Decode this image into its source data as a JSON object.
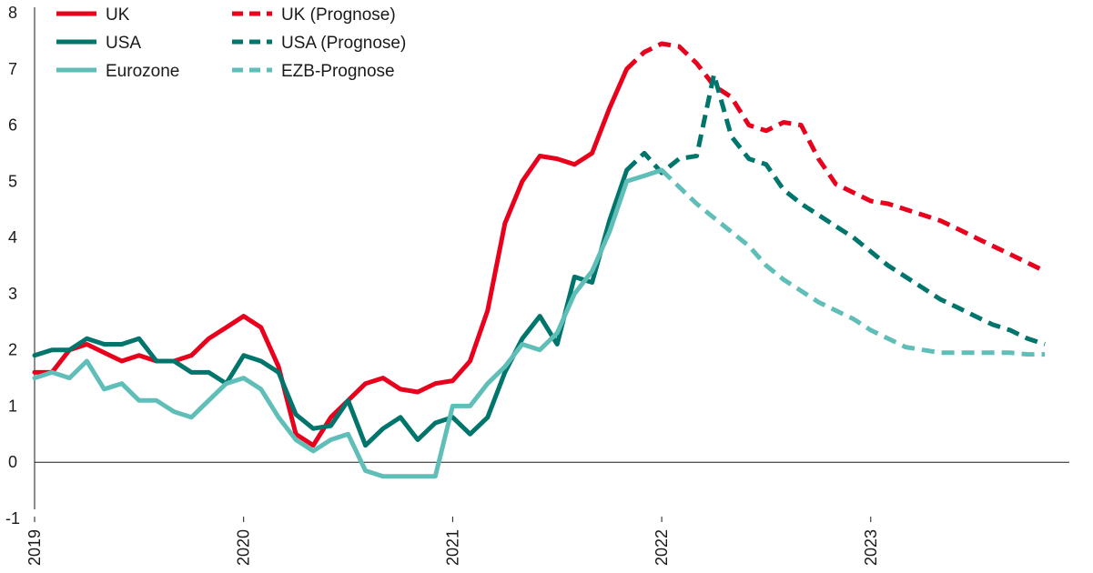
{
  "chart_data": {
    "type": "line",
    "title": "",
    "xlabel": "",
    "ylabel": "",
    "ylim": [
      -1,
      8
    ],
    "yticks": [
      -1,
      0,
      1,
      2,
      3,
      4,
      5,
      6,
      7,
      8
    ],
    "xlim": [
      2019.0,
      2023.95
    ],
    "xticks": [
      {
        "value": 2019,
        "label": "2019"
      },
      {
        "value": 2020,
        "label": "2020"
      },
      {
        "value": 2021,
        "label": "2021"
      },
      {
        "value": 2022,
        "label": "2022"
      },
      {
        "value": 2023,
        "label": "2023"
      }
    ],
    "grid": false,
    "legend": "top-left",
    "series": [
      {
        "name": "UK",
        "color": "#e8001c",
        "dashed": false,
        "points": [
          [
            2019.0,
            1.6
          ],
          [
            2019.083,
            1.6
          ],
          [
            2019.167,
            2.0
          ],
          [
            2019.25,
            2.1
          ],
          [
            2019.333,
            1.95
          ],
          [
            2019.417,
            1.8
          ],
          [
            2019.5,
            1.9
          ],
          [
            2019.583,
            1.8
          ],
          [
            2019.667,
            1.8
          ],
          [
            2019.75,
            1.9
          ],
          [
            2019.833,
            2.2
          ],
          [
            2019.917,
            2.4
          ],
          [
            2020.0,
            2.6
          ],
          [
            2020.083,
            2.4
          ],
          [
            2020.167,
            1.7
          ],
          [
            2020.25,
            0.5
          ],
          [
            2020.333,
            0.3
          ],
          [
            2020.417,
            0.8
          ],
          [
            2020.5,
            1.1
          ],
          [
            2020.583,
            1.4
          ],
          [
            2020.667,
            1.5
          ],
          [
            2020.75,
            1.3
          ],
          [
            2020.833,
            1.25
          ],
          [
            2020.917,
            1.4
          ],
          [
            2021.0,
            1.45
          ],
          [
            2021.083,
            1.8
          ],
          [
            2021.167,
            2.7
          ],
          [
            2021.25,
            4.25
          ],
          [
            2021.333,
            5.0
          ],
          [
            2021.417,
            5.45
          ],
          [
            2021.5,
            5.4
          ],
          [
            2021.583,
            5.3
          ],
          [
            2021.667,
            5.5
          ],
          [
            2021.75,
            6.3
          ],
          [
            2021.833,
            7.0
          ]
        ]
      },
      {
        "name": "UK (Prognose)",
        "color": "#e8001c",
        "dashed": true,
        "points": [
          [
            2021.833,
            7.0
          ],
          [
            2021.917,
            7.3
          ],
          [
            2022.0,
            7.45
          ],
          [
            2022.083,
            7.4
          ],
          [
            2022.167,
            7.1
          ],
          [
            2022.25,
            6.7
          ],
          [
            2022.333,
            6.5
          ],
          [
            2022.417,
            6.0
          ],
          [
            2022.5,
            5.9
          ],
          [
            2022.583,
            6.05
          ],
          [
            2022.667,
            6.0
          ],
          [
            2022.75,
            5.4
          ],
          [
            2022.833,
            4.95
          ],
          [
            2022.917,
            4.8
          ],
          [
            2023.0,
            4.65
          ],
          [
            2023.083,
            4.6
          ],
          [
            2023.167,
            4.5
          ],
          [
            2023.25,
            4.4
          ],
          [
            2023.333,
            4.3
          ],
          [
            2023.417,
            4.15
          ],
          [
            2023.5,
            4.0
          ],
          [
            2023.583,
            3.85
          ],
          [
            2023.667,
            3.7
          ],
          [
            2023.75,
            3.55
          ],
          [
            2023.833,
            3.4
          ]
        ]
      },
      {
        "name": "USA",
        "color": "#00756b",
        "dashed": false,
        "points": [
          [
            2019.0,
            1.9
          ],
          [
            2019.083,
            2.0
          ],
          [
            2019.167,
            2.0
          ],
          [
            2019.25,
            2.2
          ],
          [
            2019.333,
            2.1
          ],
          [
            2019.417,
            2.1
          ],
          [
            2019.5,
            2.2
          ],
          [
            2019.583,
            1.8
          ],
          [
            2019.667,
            1.8
          ],
          [
            2019.75,
            1.6
          ],
          [
            2019.833,
            1.6
          ],
          [
            2019.917,
            1.4
          ],
          [
            2020.0,
            1.9
          ],
          [
            2020.083,
            1.8
          ],
          [
            2020.167,
            1.6
          ],
          [
            2020.25,
            0.85
          ],
          [
            2020.333,
            0.6
          ],
          [
            2020.417,
            0.65
          ],
          [
            2020.5,
            1.1
          ],
          [
            2020.583,
            0.3
          ],
          [
            2020.667,
            0.6
          ],
          [
            2020.75,
            0.8
          ],
          [
            2020.833,
            0.4
          ],
          [
            2020.917,
            0.7
          ],
          [
            2021.0,
            0.8
          ],
          [
            2021.083,
            0.5
          ],
          [
            2021.167,
            0.8
          ],
          [
            2021.25,
            1.6
          ],
          [
            2021.333,
            2.2
          ],
          [
            2021.417,
            2.6
          ],
          [
            2021.5,
            2.1
          ],
          [
            2021.583,
            3.3
          ],
          [
            2021.667,
            3.2
          ],
          [
            2021.75,
            4.3
          ],
          [
            2021.833,
            5.2
          ]
        ]
      },
      {
        "name": "USA (Prognose)",
        "color": "#00756b",
        "dashed": true,
        "points": [
          [
            2021.833,
            5.2
          ],
          [
            2021.917,
            5.5
          ],
          [
            2022.0,
            5.15
          ],
          [
            2022.083,
            5.4
          ],
          [
            2022.167,
            5.45
          ],
          [
            2022.25,
            6.9
          ],
          [
            2022.333,
            5.8
          ],
          [
            2022.417,
            5.4
          ],
          [
            2022.5,
            5.3
          ],
          [
            2022.583,
            4.85
          ],
          [
            2022.667,
            4.6
          ],
          [
            2022.75,
            4.4
          ],
          [
            2022.833,
            4.2
          ],
          [
            2022.917,
            4.0
          ],
          [
            2023.0,
            3.75
          ],
          [
            2023.083,
            3.5
          ],
          [
            2023.167,
            3.3
          ],
          [
            2023.25,
            3.1
          ],
          [
            2023.333,
            2.9
          ],
          [
            2023.417,
            2.75
          ],
          [
            2023.5,
            2.6
          ],
          [
            2023.583,
            2.45
          ],
          [
            2023.667,
            2.35
          ],
          [
            2023.75,
            2.2
          ],
          [
            2023.833,
            2.1
          ]
        ]
      },
      {
        "name": "Eurozone",
        "color": "#5fbfb8",
        "dashed": false,
        "points": [
          [
            2019.0,
            1.5
          ],
          [
            2019.083,
            1.6
          ],
          [
            2019.167,
            1.5
          ],
          [
            2019.25,
            1.8
          ],
          [
            2019.333,
            1.3
          ],
          [
            2019.417,
            1.4
          ],
          [
            2019.5,
            1.1
          ],
          [
            2019.583,
            1.1
          ],
          [
            2019.667,
            0.9
          ],
          [
            2019.75,
            0.8
          ],
          [
            2019.833,
            1.1
          ],
          [
            2019.917,
            1.4
          ],
          [
            2020.0,
            1.5
          ],
          [
            2020.083,
            1.3
          ],
          [
            2020.167,
            0.8
          ],
          [
            2020.25,
            0.4
          ],
          [
            2020.333,
            0.2
          ],
          [
            2020.417,
            0.4
          ],
          [
            2020.5,
            0.5
          ],
          [
            2020.583,
            -0.15
          ],
          [
            2020.667,
            -0.25
          ],
          [
            2020.75,
            -0.25
          ],
          [
            2020.833,
            -0.25
          ],
          [
            2020.917,
            -0.25
          ],
          [
            2021.0,
            1.0
          ],
          [
            2021.083,
            1.0
          ],
          [
            2021.167,
            1.4
          ],
          [
            2021.25,
            1.7
          ],
          [
            2021.333,
            2.1
          ],
          [
            2021.417,
            2.0
          ],
          [
            2021.5,
            2.3
          ],
          [
            2021.583,
            3.0
          ],
          [
            2021.667,
            3.4
          ],
          [
            2021.75,
            4.1
          ],
          [
            2021.833,
            5.0
          ],
          [
            2021.917,
            5.1
          ],
          [
            2022.0,
            5.2
          ]
        ]
      },
      {
        "name": "EZB-Prognose",
        "color": "#5fbfb8",
        "dashed": true,
        "points": [
          [
            2022.0,
            5.2
          ],
          [
            2022.083,
            4.9
          ],
          [
            2022.167,
            4.6
          ],
          [
            2022.25,
            4.35
          ],
          [
            2022.333,
            4.1
          ],
          [
            2022.417,
            3.85
          ],
          [
            2022.5,
            3.5
          ],
          [
            2022.583,
            3.25
          ],
          [
            2022.667,
            3.05
          ],
          [
            2022.75,
            2.85
          ],
          [
            2022.833,
            2.7
          ],
          [
            2022.917,
            2.55
          ],
          [
            2023.0,
            2.35
          ],
          [
            2023.083,
            2.2
          ],
          [
            2023.167,
            2.05
          ],
          [
            2023.25,
            2.0
          ],
          [
            2023.333,
            1.95
          ],
          [
            2023.417,
            1.95
          ],
          [
            2023.5,
            1.95
          ],
          [
            2023.583,
            1.95
          ],
          [
            2023.667,
            1.95
          ],
          [
            2023.75,
            1.92
          ],
          [
            2023.833,
            1.92
          ]
        ]
      }
    ]
  }
}
